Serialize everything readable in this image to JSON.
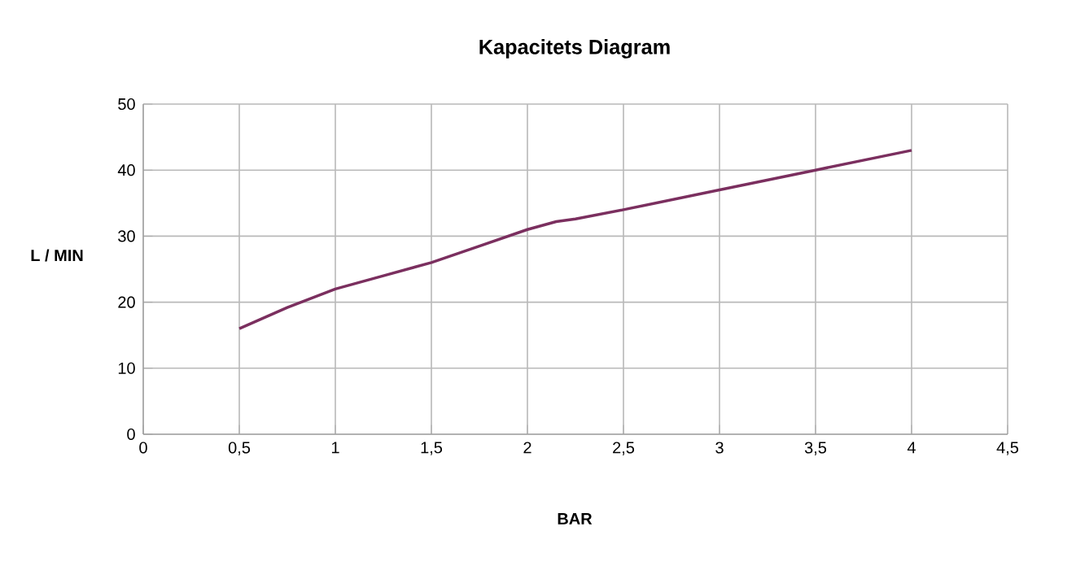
{
  "chart_data": {
    "type": "line",
    "title": "Kapacitets Diagram",
    "xlabel": "BAR",
    "ylabel": "L / MIN",
    "x": [
      0.5,
      0.75,
      1,
      1.25,
      1.5,
      1.75,
      2,
      2.15,
      2.25,
      2.5,
      3,
      3.5,
      4
    ],
    "series": [
      {
        "color": "#7b2f5f",
        "values": [
          16,
          19.2,
          22,
          24,
          26,
          28.5,
          31,
          32.2,
          32.6,
          34,
          37,
          40,
          43
        ]
      }
    ],
    "xlim": [
      0,
      4.5
    ],
    "xticks": [
      0,
      {
        "value": 0.5,
        "label": "0,5"
      },
      1,
      {
        "value": 1.5,
        "label": "1,5"
      },
      2,
      {
        "value": 2.5,
        "label": "2,5"
      },
      3,
      {
        "value": 3.5,
        "label": "3,5"
      },
      4,
      {
        "value": 4.5,
        "label": "4,5"
      }
    ],
    "ylim": [
      0,
      50
    ],
    "yticks": [
      0,
      10,
      20,
      30,
      40,
      50
    ],
    "grid": true,
    "marker": "none",
    "line_style": "solid"
  }
}
